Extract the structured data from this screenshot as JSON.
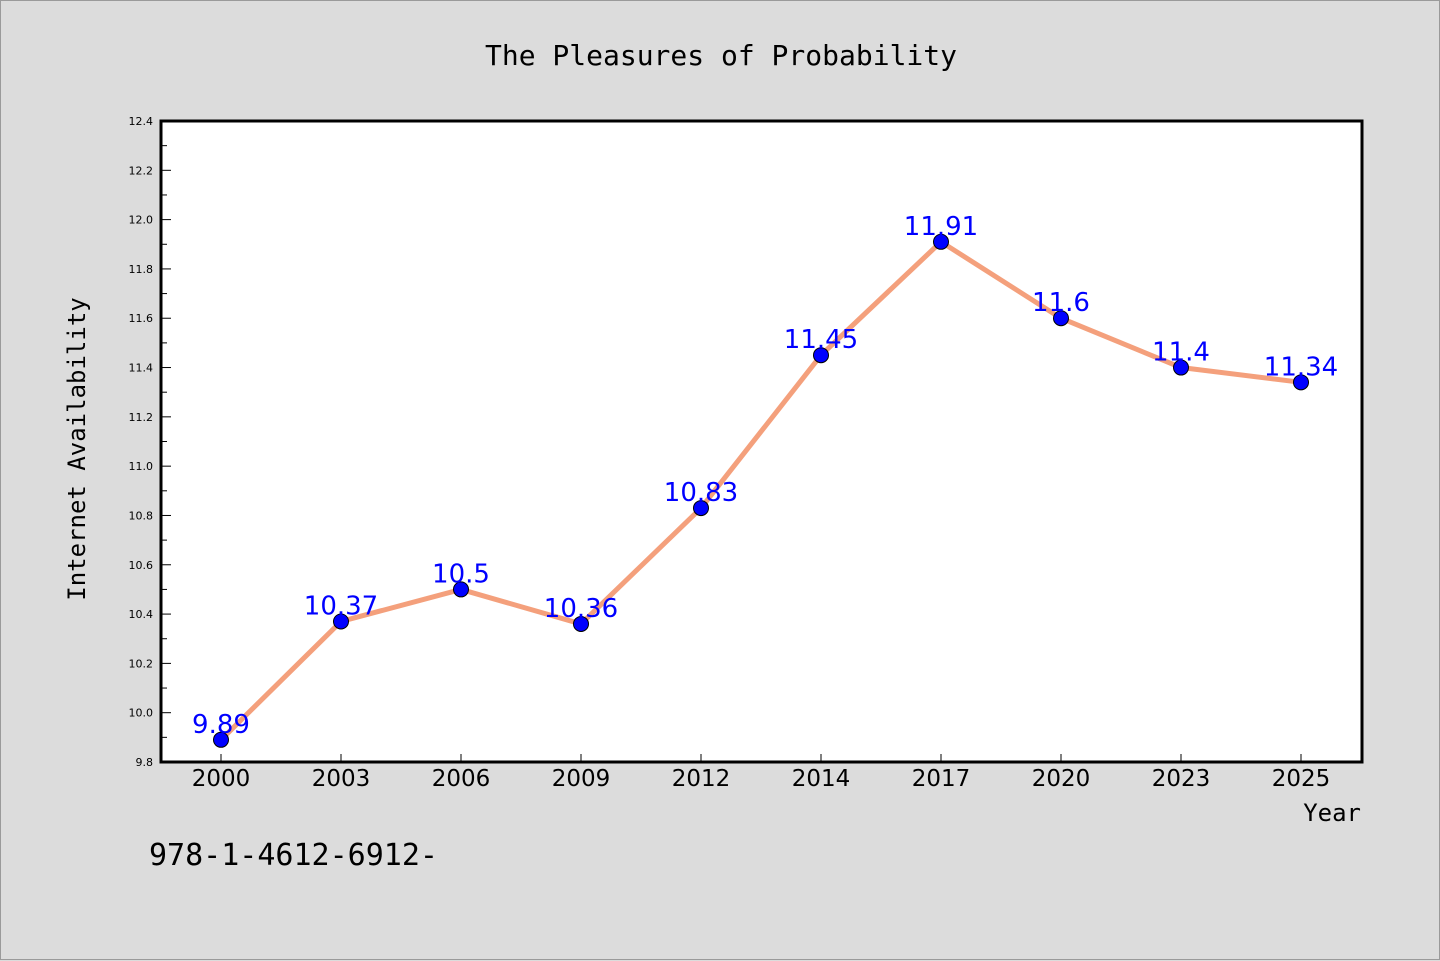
{
  "chart_data": {
    "type": "line",
    "title": "The Pleasures of Probability",
    "xlabel": "Year",
    "ylabel": "Internet Availability",
    "categories": [
      "2000",
      "2003",
      "2006",
      "2009",
      "2012",
      "2014",
      "2017",
      "2020",
      "2023",
      "2025"
    ],
    "series": [
      {
        "values": [
          9.89,
          10.37,
          10.5,
          10.36,
          10.83,
          11.45,
          11.91,
          11.6,
          11.4,
          11.34
        ],
        "data_labels": [
          "9.89",
          "10.37",
          "10.5",
          "10.36",
          "10.83",
          "11.45",
          "11.91",
          "11.6",
          "11.4",
          "11.34"
        ],
        "line_color": "#f4a07c",
        "marker_color": "#0000ff"
      }
    ],
    "ylim": [
      9.8,
      12.4
    ],
    "yticks": [
      "9.8",
      "10.0",
      "10.2",
      "10.4",
      "10.6",
      "10.8",
      "11.0",
      "11.2",
      "11.4",
      "11.6",
      "11.8",
      "12.0",
      "12.2",
      "12.4"
    ],
    "grid": false,
    "legend": "none"
  },
  "footnote": "978-1-4612-6912-",
  "colors": {
    "background": "#dcdcdc",
    "plot_background": "#ffffff",
    "line": "#f4a07c",
    "marker": "#0000ff",
    "data_label": "#0000ff"
  }
}
